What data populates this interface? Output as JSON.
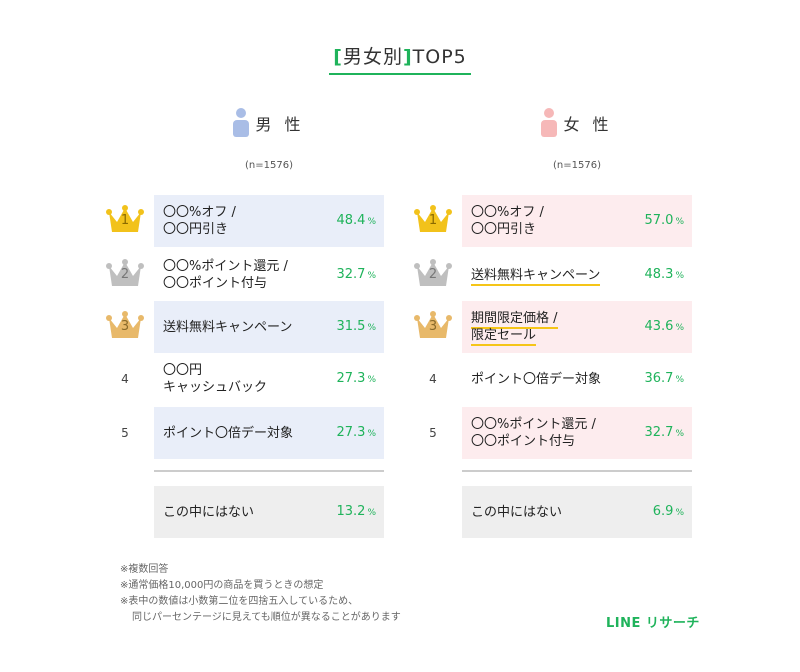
{
  "title": {
    "bracket_open": "[",
    "main": "男女別",
    "bracket_close": "]",
    "suffix": "TOP5"
  },
  "colors": {
    "accent": "#1fb35b",
    "male_bg": "#e9eef9",
    "female_bg": "#fdecee",
    "none_bg": "#eeeeee",
    "male_icon": "#a9bde6",
    "female_icon": "#f6b8b8",
    "gold": "#f2c21b",
    "silver": "#bfbfbf",
    "bronze": "#e8b96a",
    "highlight": "#f5c518"
  },
  "chart_data": {
    "type": "table",
    "unit": "%",
    "groups": [
      {
        "key": "male",
        "label": "男 性",
        "n": "(n=1576)",
        "items": [
          {
            "rank": "1",
            "lines": [
              "〇〇%オフ /",
              "〇〇円引き"
            ],
            "value": 48.4,
            "value_text": "48.4",
            "highlight": false
          },
          {
            "rank": "2",
            "lines": [
              "〇〇%ポイント還元 /",
              "〇〇ポイント付与"
            ],
            "value": 32.7,
            "value_text": "32.7",
            "highlight": false
          },
          {
            "rank": "3",
            "lines": [
              "送料無料キャンペーン"
            ],
            "value": 31.5,
            "value_text": "31.5",
            "highlight": false
          },
          {
            "rank": "4",
            "lines": [
              "〇〇円",
              "キャッシュバック"
            ],
            "value": 27.3,
            "value_text": "27.3",
            "highlight": false
          },
          {
            "rank": "5",
            "lines": [
              "ポイント〇倍デー対象"
            ],
            "value": 27.3,
            "value_text": "27.3",
            "highlight": false
          }
        ],
        "none": {
          "label": "この中にはない",
          "value": 13.2,
          "value_text": "13.2"
        }
      },
      {
        "key": "female",
        "label": "女 性",
        "n": "(n=1576)",
        "items": [
          {
            "rank": "1",
            "lines": [
              "〇〇%オフ /",
              "〇〇円引き"
            ],
            "value": 57.0,
            "value_text": "57.0",
            "highlight": false
          },
          {
            "rank": "2",
            "lines": [
              "送料無料キャンペーン"
            ],
            "value": 48.3,
            "value_text": "48.3",
            "highlight": true
          },
          {
            "rank": "3",
            "lines": [
              "期間限定価格 /",
              "限定セール"
            ],
            "value": 43.6,
            "value_text": "43.6",
            "highlight": true
          },
          {
            "rank": "4",
            "lines": [
              "ポイント〇倍デー対象"
            ],
            "value": 36.7,
            "value_text": "36.7",
            "highlight": false
          },
          {
            "rank": "5",
            "lines": [
              "〇〇%ポイント還元 /",
              "〇〇ポイント付与"
            ],
            "value": 32.7,
            "value_text": "32.7",
            "highlight": false
          }
        ],
        "none": {
          "label": "この中にはない",
          "value": 6.9,
          "value_text": "6.9"
        }
      }
    ]
  },
  "notes": [
    "※複数回答",
    "※通常価格10,000円の商品を買うときの想定",
    "※表中の数値は小数第二位を四捨五入しているため、",
    "同じパーセンテージに見えても順位が異なることがあります"
  ],
  "logo": "LINE リサーチ",
  "icons": {
    "crown": "crown-icon",
    "person": "person-icon"
  }
}
